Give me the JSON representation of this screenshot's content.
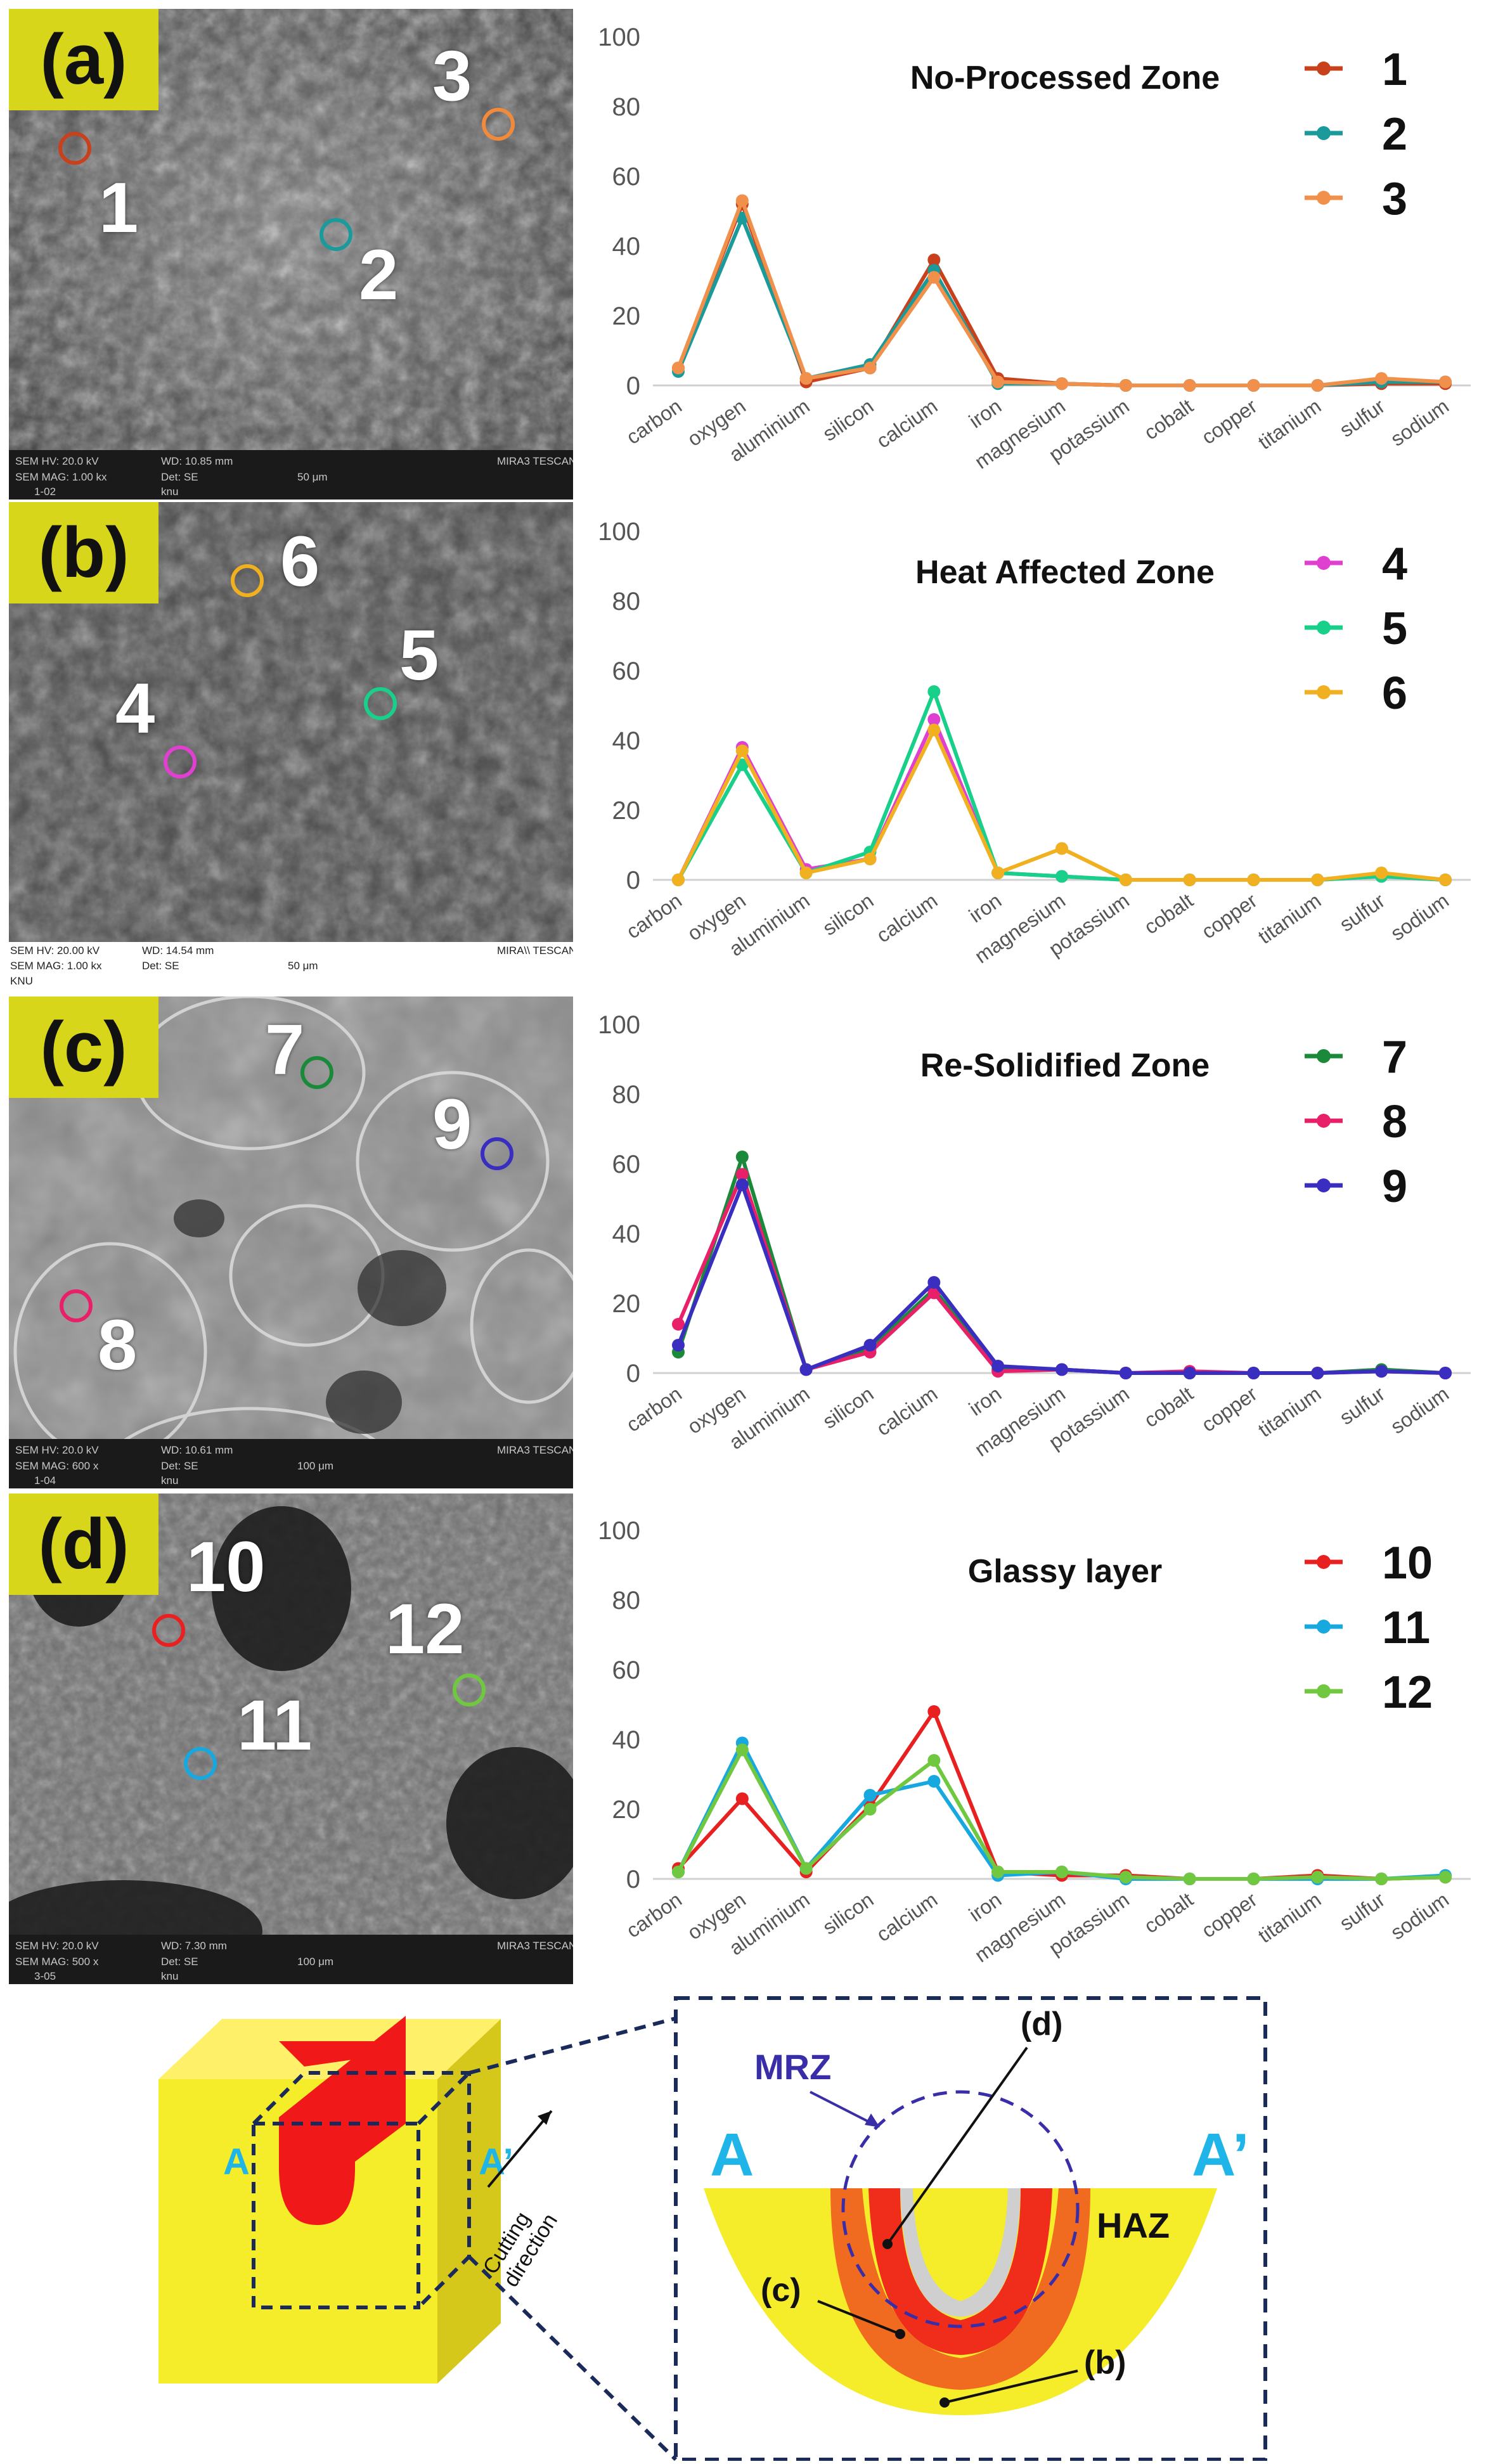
{
  "panels": [
    {
      "label": "(a)",
      "info": {
        "hv": "SEM HV: 20.0 kV",
        "wd": "WD: 10.85 mm",
        "mag": "SEM MAG: 1.00 kx",
        "det": "Det: SE",
        "scale": "50 μm",
        "code": "1-02",
        "lab": "knu",
        "brand": "MIRA3 TESCAN"
      },
      "points": [
        {
          "num": "1",
          "color": "#c8411c"
        },
        {
          "num": "2",
          "color": "#1a9a9a"
        },
        {
          "num": "3",
          "color": "#f08a3c"
        }
      ]
    },
    {
      "label": "(b)",
      "info": {
        "hv": "SEM HV: 20.00 kV",
        "wd": "WD: 14.54 mm",
        "mag": "SEM MAG: 1.00 kx",
        "det": "Det: SE",
        "scale": "50 μm",
        "code": "KNU",
        "lab": "",
        "brand": "MIRA\\\\ TESCAN"
      },
      "points": [
        {
          "num": "4",
          "color": "#e040d0"
        },
        {
          "num": "5",
          "color": "#18d08a"
        },
        {
          "num": "6",
          "color": "#f0b020"
        }
      ]
    },
    {
      "label": "(c)",
      "info": {
        "hv": "SEM HV: 20.0 kV",
        "wd": "WD: 10.61 mm",
        "mag": "SEM MAG: 600 x",
        "det": "Det: SE",
        "scale": "100 μm",
        "code": "1-04",
        "lab": "knu",
        "brand": "MIRA3 TESCAN"
      },
      "points": [
        {
          "num": "7",
          "color": "#1a8a3a"
        },
        {
          "num": "8",
          "color": "#e8206a"
        },
        {
          "num": "9",
          "color": "#3a2ec0"
        }
      ]
    },
    {
      "label": "(d)",
      "info": {
        "hv": "SEM HV: 20.0 kV",
        "wd": "WD: 7.30 mm",
        "mag": "SEM MAG: 500 x",
        "det": "Det: SE",
        "scale": "100 μm",
        "code": "3-05",
        "lab": "knu",
        "brand": "MIRA3 TESCAN"
      },
      "points": [
        {
          "num": "10",
          "color": "#e82020"
        },
        {
          "num": "11",
          "color": "#18a8e0"
        },
        {
          "num": "12",
          "color": "#70c840"
        }
      ]
    }
  ],
  "chart_data": [
    {
      "type": "line",
      "title": "No-Processed Zone",
      "categories": [
        "carbon",
        "oxygen",
        "aluminium",
        "silicon",
        "calcium",
        "iron",
        "magnesium",
        "potassium",
        "cobalt",
        "copper",
        "titanium",
        "sulfur",
        "sodium"
      ],
      "ylim": [
        0,
        100
      ],
      "yticks": [
        0,
        20,
        40,
        60,
        80,
        100
      ],
      "series": [
        {
          "name": "1",
          "color": "#c8411c",
          "values": [
            5,
            52,
            1,
            5,
            36,
            2,
            0.5,
            0,
            0,
            0,
            0,
            0.5,
            0.5
          ]
        },
        {
          "name": "2",
          "color": "#1a9a9a",
          "values": [
            4,
            48,
            2,
            6,
            33,
            0.5,
            0.5,
            0,
            0,
            0,
            0,
            1,
            1
          ]
        },
        {
          "name": "3",
          "color": "#f0904a",
          "values": [
            5,
            53,
            2,
            5,
            31,
            1,
            0.5,
            0,
            0,
            0,
            0,
            2,
            1
          ]
        }
      ]
    },
    {
      "type": "line",
      "title": "Heat Affected Zone",
      "categories": [
        "carbon",
        "oxygen",
        "aluminium",
        "silicon",
        "calcium",
        "iron",
        "magnesium",
        "potassium",
        "cobalt",
        "copper",
        "titanium",
        "sulfur",
        "sodium"
      ],
      "ylim": [
        0,
        100
      ],
      "yticks": [
        0,
        20,
        40,
        60,
        80,
        100
      ],
      "series": [
        {
          "name": "4",
          "color": "#e040d0",
          "values": [
            0,
            38,
            3,
            6,
            46,
            2,
            1,
            0,
            0,
            0,
            0,
            1,
            0
          ]
        },
        {
          "name": "5",
          "color": "#18d08a",
          "values": [
            0,
            33,
            2,
            8,
            54,
            2,
            1,
            0,
            0,
            0,
            0,
            1,
            0
          ]
        },
        {
          "name": "6",
          "color": "#f0b020",
          "values": [
            0,
            37,
            2,
            6,
            43,
            2,
            9,
            0,
            0,
            0,
            0,
            2,
            0
          ]
        }
      ]
    },
    {
      "type": "line",
      "title": "Re-Solidified Zone",
      "categories": [
        "carbon",
        "oxygen",
        "aluminium",
        "silicon",
        "calcium",
        "iron",
        "magnesium",
        "potassium",
        "cobalt",
        "copper",
        "titanium",
        "sulfur",
        "sodium"
      ],
      "ylim": [
        0,
        100
      ],
      "yticks": [
        0,
        20,
        40,
        60,
        80,
        100
      ],
      "series": [
        {
          "name": "7",
          "color": "#1a8a3a",
          "values": [
            6,
            62,
            1,
            7,
            24,
            1,
            1,
            0,
            0,
            0,
            0,
            1,
            0
          ]
        },
        {
          "name": "8",
          "color": "#e8206a",
          "values": [
            14,
            57,
            1,
            6,
            23,
            0.5,
            1,
            0,
            0.5,
            0,
            0,
            0.5,
            0
          ]
        },
        {
          "name": "9",
          "color": "#3a2ec0",
          "values": [
            8,
            54,
            1,
            8,
            26,
            2,
            1,
            0,
            0,
            0,
            0,
            0.5,
            0
          ]
        }
      ]
    },
    {
      "type": "line",
      "title": "Glassy layer",
      "categories": [
        "carbon",
        "oxygen",
        "aluminium",
        "silicon",
        "calcium",
        "iron",
        "magnesium",
        "potassium",
        "cobalt",
        "copper",
        "titanium",
        "sulfur",
        "sodium"
      ],
      "ylim": [
        0,
        100
      ],
      "yticks": [
        0,
        20,
        40,
        60,
        80,
        100
      ],
      "series": [
        {
          "name": "10",
          "color": "#e82020",
          "values": [
            3,
            23,
            2,
            21,
            48,
            2,
            1,
            1,
            0,
            0,
            1,
            0,
            0.5
          ]
        },
        {
          "name": "11",
          "color": "#18a8e0",
          "values": [
            2,
            39,
            3,
            24,
            28,
            1,
            2,
            0,
            0,
            0,
            0,
            0,
            1
          ]
        },
        {
          "name": "12",
          "color": "#70c840",
          "values": [
            2,
            37,
            3,
            20,
            34,
            2,
            2,
            0.5,
            0,
            0,
            0.5,
            0,
            0.5
          ]
        }
      ]
    }
  ],
  "diagram": {
    "label_a": "A",
    "label_a_prime": "A’",
    "cutting_direction": "Cutting direction",
    "cutting_line1": "Cutting",
    "cutting_line2": "direction",
    "mrz": "MRZ",
    "haz": "HAZ",
    "ref_d": "(d)",
    "ref_c": "(c)",
    "ref_b": "(b)",
    "colors": {
      "yellow": "#f5ec2a",
      "red": "#f01818",
      "orange": "#f06a20",
      "navy": "#1a2a5a",
      "cyan": "#1fb5e8",
      "mrz": "#3a2ea8"
    }
  }
}
